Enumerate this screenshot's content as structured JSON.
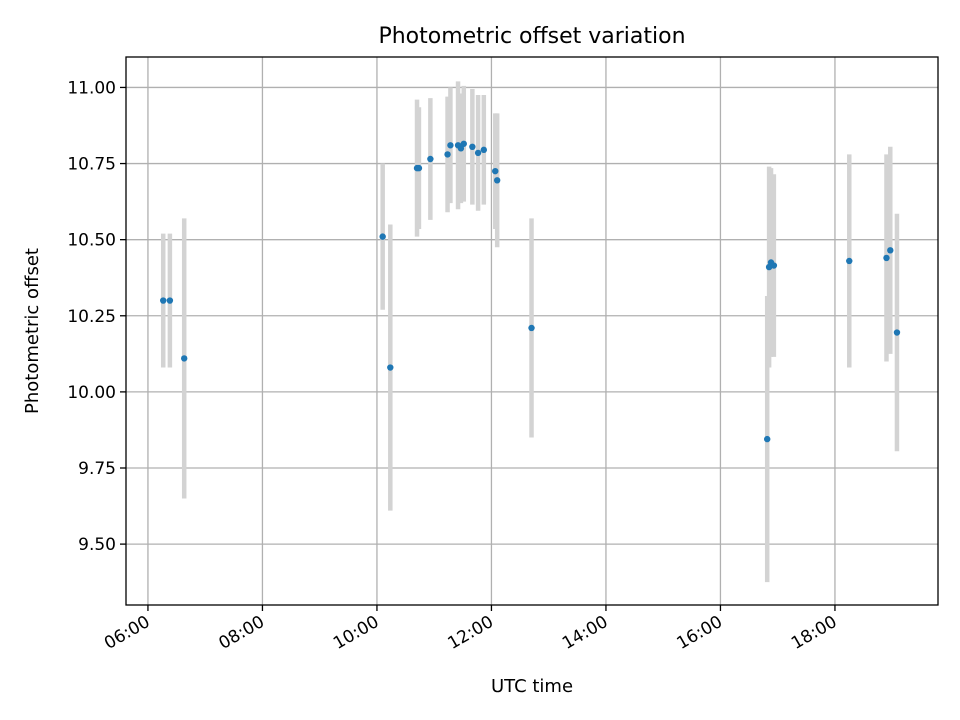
{
  "chart_data": {
    "type": "scatter",
    "title": "Photometric offset variation",
    "xlabel": "UTC time",
    "ylabel": "Photometric offset",
    "xlim": [
      "05:37",
      "19:48"
    ],
    "ylim": [
      9.3,
      11.1
    ],
    "x_ticks": [
      "06:00",
      "08:00",
      "10:00",
      "12:00",
      "14:00",
      "16:00",
      "18:00"
    ],
    "y_ticks": [
      "9.50",
      "9.75",
      "10.00",
      "10.25",
      "10.50",
      "10.75",
      "11.00"
    ],
    "grid": true,
    "point_color": "#1f77b4",
    "errorbar_color": "#d3d3d3",
    "series": [
      {
        "points": [
          {
            "t": "06:16",
            "y": 10.3,
            "err": 0.22
          },
          {
            "t": "06:23",
            "y": 10.3,
            "err": 0.22
          },
          {
            "t": "06:38",
            "y": 10.11,
            "err": 0.46
          },
          {
            "t": "10:06",
            "y": 10.51,
            "err": 0.24
          },
          {
            "t": "10:14",
            "y": 10.08,
            "err": 0.47
          },
          {
            "t": "10:42",
            "y": 10.735,
            "err": 0.225
          },
          {
            "t": "10:44",
            "y": 10.735,
            "err": 0.2
          },
          {
            "t": "10:56",
            "y": 10.765,
            "err": 0.2
          },
          {
            "t": "11:14",
            "y": 10.78,
            "err": 0.19
          },
          {
            "t": "11:17",
            "y": 10.81,
            "err": 0.19
          },
          {
            "t": "11:25",
            "y": 10.81,
            "err": 0.21
          },
          {
            "t": "11:28",
            "y": 10.8,
            "err": 0.18
          },
          {
            "t": "11:31",
            "y": 10.815,
            "err": 0.19
          },
          {
            "t": "11:40",
            "y": 10.805,
            "err": 0.19
          },
          {
            "t": "11:46",
            "y": 10.785,
            "err": 0.19
          },
          {
            "t": "11:52",
            "y": 10.795,
            "err": 0.18
          },
          {
            "t": "12:04",
            "y": 10.725,
            "err": 0.19
          },
          {
            "t": "12:06",
            "y": 10.695,
            "err": 0.22
          },
          {
            "t": "12:42",
            "y": 10.21,
            "err": 0.36
          },
          {
            "t": "16:49",
            "y": 9.845,
            "err": 0.47
          },
          {
            "t": "16:51",
            "y": 10.41,
            "err": 0.33
          },
          {
            "t": "16:53",
            "y": 10.425,
            "err": 0.31
          },
          {
            "t": "16:56",
            "y": 10.415,
            "err": 0.3
          },
          {
            "t": "18:15",
            "y": 10.43,
            "err": 0.35
          },
          {
            "t": "18:54",
            "y": 10.44,
            "err": 0.34
          },
          {
            "t": "18:58",
            "y": 10.465,
            "err": 0.34
          },
          {
            "t": "19:05",
            "y": 10.195,
            "err": 0.39
          }
        ]
      }
    ]
  }
}
